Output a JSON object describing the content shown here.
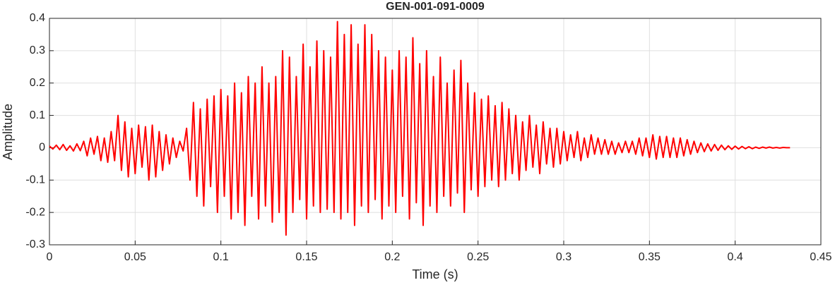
{
  "chart_data": {
    "type": "line",
    "title": "GEN-001-091-0009",
    "xlabel": "Time (s)",
    "ylabel": "Amplitude",
    "xlim": [
      0,
      0.45
    ],
    "xticks": [
      0,
      0.05,
      0.1,
      0.15,
      0.2,
      0.25,
      0.3,
      0.35,
      0.4,
      0.45
    ],
    "ylim": [
      -0.3,
      0.4
    ],
    "yticks": [
      -0.3,
      -0.2,
      -0.1,
      0,
      0.1,
      0.2,
      0.3,
      0.4
    ],
    "grid": true,
    "series": [
      {
        "color": "#ff0000",
        "x": [
          0,
          0.002,
          0.004,
          0.006,
          0.008,
          0.01,
          0.012,
          0.014,
          0.016,
          0.018,
          0.02,
          0.022,
          0.024,
          0.026,
          0.028,
          0.03,
          0.032,
          0.034,
          0.036,
          0.038,
          0.04,
          0.042,
          0.044,
          0.046,
          0.048,
          0.05,
          0.052,
          0.054,
          0.056,
          0.058,
          0.06,
          0.062,
          0.064,
          0.066,
          0.068,
          0.07,
          0.072,
          0.074,
          0.076,
          0.078,
          0.08,
          0.082,
          0.084,
          0.086,
          0.088,
          0.09,
          0.092,
          0.094,
          0.096,
          0.098,
          0.1,
          0.102,
          0.104,
          0.106,
          0.108,
          0.11,
          0.112,
          0.114,
          0.116,
          0.118,
          0.12,
          0.122,
          0.124,
          0.126,
          0.128,
          0.13,
          0.132,
          0.134,
          0.136,
          0.138,
          0.14,
          0.142,
          0.144,
          0.146,
          0.148,
          0.15,
          0.152,
          0.154,
          0.156,
          0.158,
          0.16,
          0.162,
          0.164,
          0.166,
          0.168,
          0.17,
          0.172,
          0.174,
          0.176,
          0.178,
          0.18,
          0.182,
          0.184,
          0.186,
          0.188,
          0.19,
          0.192,
          0.194,
          0.196,
          0.198,
          0.2,
          0.202,
          0.204,
          0.206,
          0.208,
          0.21,
          0.212,
          0.214,
          0.216,
          0.218,
          0.22,
          0.222,
          0.224,
          0.226,
          0.228,
          0.23,
          0.232,
          0.234,
          0.236,
          0.238,
          0.24,
          0.242,
          0.244,
          0.246,
          0.248,
          0.25,
          0.252,
          0.254,
          0.256,
          0.258,
          0.26,
          0.262,
          0.264,
          0.266,
          0.268,
          0.27,
          0.272,
          0.274,
          0.276,
          0.278,
          0.28,
          0.282,
          0.284,
          0.286,
          0.288,
          0.29,
          0.292,
          0.294,
          0.296,
          0.298,
          0.3,
          0.302,
          0.304,
          0.306,
          0.308,
          0.31,
          0.312,
          0.314,
          0.316,
          0.318,
          0.32,
          0.322,
          0.324,
          0.326,
          0.328,
          0.33,
          0.332,
          0.334,
          0.336,
          0.338,
          0.34,
          0.342,
          0.344,
          0.346,
          0.348,
          0.35,
          0.352,
          0.354,
          0.356,
          0.358,
          0.36,
          0.362,
          0.364,
          0.366,
          0.368,
          0.37,
          0.372,
          0.374,
          0.376,
          0.378,
          0.38,
          0.382,
          0.384,
          0.386,
          0.388,
          0.39,
          0.392,
          0.394,
          0.396,
          0.398,
          0.4,
          0.402,
          0.404,
          0.406,
          0.408,
          0.41,
          0.412,
          0.414,
          0.416,
          0.418,
          0.42,
          0.422,
          0.424,
          0.426,
          0.428,
          0.43,
          0.432
        ],
        "values": [
          0.005,
          -0.004,
          0.008,
          -0.006,
          0.01,
          -0.008,
          0.006,
          -0.01,
          0.012,
          -0.009,
          0.02,
          -0.025,
          0.03,
          -0.02,
          0.035,
          -0.04,
          0.03,
          -0.045,
          0.05,
          -0.04,
          0.1,
          -0.07,
          0.08,
          -0.09,
          0.06,
          -0.08,
          0.07,
          -0.06,
          0.065,
          -0.1,
          0.07,
          -0.09,
          0.05,
          -0.07,
          0.04,
          -0.05,
          0.03,
          -0.03,
          0.02,
          -0.01,
          0.06,
          -0.1,
          0.14,
          -0.15,
          0.12,
          -0.18,
          0.15,
          -0.12,
          0.16,
          -0.2,
          0.18,
          -0.15,
          0.16,
          -0.22,
          0.2,
          -0.2,
          0.17,
          -0.24,
          0.22,
          -0.15,
          0.2,
          -0.22,
          0.25,
          -0.18,
          0.2,
          -0.23,
          0.22,
          -0.2,
          0.3,
          -0.27,
          0.28,
          -0.2,
          0.22,
          -0.16,
          0.32,
          -0.22,
          0.25,
          -0.18,
          0.33,
          -0.2,
          0.3,
          -0.19,
          0.28,
          -0.2,
          0.39,
          -0.22,
          0.35,
          -0.2,
          0.38,
          -0.24,
          0.32,
          -0.18,
          0.38,
          -0.2,
          0.35,
          -0.16,
          0.3,
          -0.22,
          0.28,
          -0.18,
          0.24,
          -0.2,
          0.3,
          -0.15,
          0.28,
          -0.22,
          0.34,
          -0.17,
          0.26,
          -0.24,
          0.3,
          -0.18,
          0.22,
          -0.2,
          0.28,
          -0.15,
          0.2,
          -0.18,
          0.24,
          -0.14,
          0.27,
          -0.2,
          0.2,
          -0.13,
          0.17,
          -0.15,
          0.15,
          -0.12,
          0.16,
          -0.1,
          0.13,
          -0.12,
          0.14,
          -0.1,
          0.12,
          -0.08,
          0.1,
          -0.1,
          0.08,
          -0.07,
          0.1,
          -0.06,
          0.07,
          -0.08,
          0.08,
          -0.05,
          0.06,
          -0.06,
          0.06,
          -0.05,
          0.05,
          -0.04,
          0.04,
          -0.03,
          0.05,
          -0.04,
          0.03,
          -0.03,
          0.04,
          -0.02,
          0.03,
          -0.02,
          0.025,
          -0.02,
          0.02,
          -0.02,
          0.015,
          -0.015,
          0.02,
          -0.015,
          0.02,
          -0.02,
          0.03,
          -0.025,
          0.03,
          -0.03,
          0.04,
          -0.035,
          0.035,
          -0.03,
          0.035,
          -0.03,
          0.03,
          -0.03,
          0.03,
          -0.025,
          0.025,
          -0.02,
          0.02,
          -0.015,
          0.015,
          -0.012,
          0.012,
          -0.01,
          0.01,
          -0.008,
          0.008,
          -0.006,
          0.006,
          -0.005,
          0.005,
          -0.004,
          0.004,
          -0.003,
          0.003,
          -0.003,
          0.002,
          -0.002,
          0.002,
          -0.001,
          0.002,
          -0.001,
          0.001,
          -0.001,
          0.001,
          0,
          0
        ]
      }
    ]
  }
}
